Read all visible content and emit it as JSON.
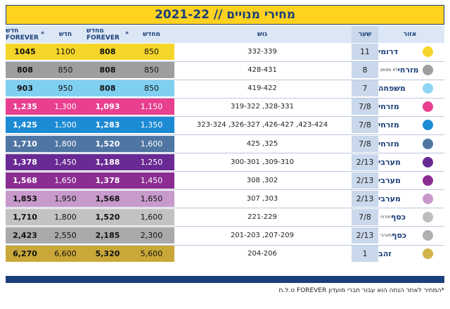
{
  "title": "מחירי מנויים // 2021-22",
  "headers": {
    "area": "אזור",
    "gate": "שער",
    "block": "גוש",
    "old_renew": "מחדש",
    "old_renew_forever": "מחדש FOREVER",
    "new": "חדש",
    "new_forever": "חדש FOREVER",
    "forever_asterisk": "*"
  },
  "rows": [
    {
      "area": "דרומי",
      "sub": "",
      "gate": "11",
      "block": "332-339",
      "old": "850",
      "old_f": "808",
      "new": "1100",
      "new_f": "1045",
      "color": "#f5d529",
      "dot": "#f5d529",
      "text": "#111111"
    },
    {
      "area": "מזרחי",
      "sub": "לא מסומן",
      "gate": "8",
      "block": "428-431",
      "old": "850",
      "old_f": "808",
      "new": "850",
      "new_f": "808",
      "color": "#9e9e9e",
      "dot": "#9e9e9e",
      "text": "#111111"
    },
    {
      "area": "משפחה",
      "sub": "",
      "gate": "7",
      "block": "419-422",
      "old": "850",
      "old_f": "808",
      "new": "950",
      "new_f": "903",
      "color": "#7fd0f0",
      "dot": "#8fd6f2",
      "text": "#111111"
    },
    {
      "area": "מזרחי",
      "sub": "",
      "gate": "7/8",
      "block": "319-322 ,328-331",
      "old": "1,150",
      "old_f": "1,093",
      "new": "1,300",
      "new_f": "1,235",
      "color": "#e8408f",
      "dot": "#e8408f",
      "text": "#ffffff"
    },
    {
      "area": "מזרחי",
      "sub": "",
      "gate": "7/8",
      "block": "323-324 ,326-327 ,426-427 ,423-424",
      "old": "1,350",
      "old_f": "1,283",
      "new": "1,500",
      "new_f": "1,425",
      "color": "#1d8bd4",
      "dot": "#1d8bd4",
      "text": "#ffffff"
    },
    {
      "area": "מזרחי",
      "sub": "",
      "gate": "7/8",
      "block": "425 ,325",
      "old": "1,600",
      "old_f": "1,520",
      "new": "1,800",
      "new_f": "1,710",
      "color": "#4f76a3",
      "dot": "#4f76a3",
      "text": "#ffffff"
    },
    {
      "area": "מערבי",
      "sub": "",
      "gate": "2/13",
      "block": "300-301 ,309-310",
      "old": "1,250",
      "old_f": "1,188",
      "new": "1,450",
      "new_f": "1,378",
      "color": "#6a2a93",
      "dot": "#6a2a93",
      "text": "#ffffff"
    },
    {
      "area": "מערבי",
      "sub": "",
      "gate": "2/13",
      "block": "308 ,302",
      "old": "1,450",
      "old_f": "1,378",
      "new": "1,650",
      "new_f": "1,568",
      "color": "#8b2d91",
      "dot": "#8b2d91",
      "text": "#ffffff"
    },
    {
      "area": "מערבי",
      "sub": "",
      "gate": "2/13",
      "block": "307 ,303",
      "old": "1,650",
      "old_f": "1,568",
      "new": "1,950",
      "new_f": "1,853",
      "color": "#c79acb",
      "dot": "#c79acb",
      "text": "#111111"
    },
    {
      "area": "כסף",
      "sub": "מזרחי",
      "gate": "7/8",
      "block": "221-229",
      "old": "1,600",
      "old_f": "1,520",
      "new": "1,800",
      "new_f": "1,710",
      "color": "#c2c2c2",
      "dot": "#bdbdbd",
      "text": "#111111"
    },
    {
      "area": "כסף",
      "sub": "מערבי",
      "gate": "2/13",
      "block": "201-203 ,207-209",
      "old": "2,300",
      "old_f": "2,185",
      "new": "2,550",
      "new_f": "2,423",
      "color": "#a9a9a9",
      "dot": "#b0b0b0",
      "text": "#111111"
    },
    {
      "area": "זהב",
      "sub": "",
      "gate": "1",
      "block": "204-206",
      "old": "5,600",
      "old_f": "5,320",
      "new": "6,600",
      "new_f": "6,270",
      "color": "#c9a839",
      "dot": "#d2b548",
      "text": "#111111"
    }
  ],
  "footnote": "*המחיר לאחר הנחה הוא עבור חברי מועדון FOREVER ט.ל.ח",
  "colors": {
    "navy": "#1b3f7a",
    "yellow": "#ffd21f",
    "gate_bg": "#c9d8ea"
  }
}
